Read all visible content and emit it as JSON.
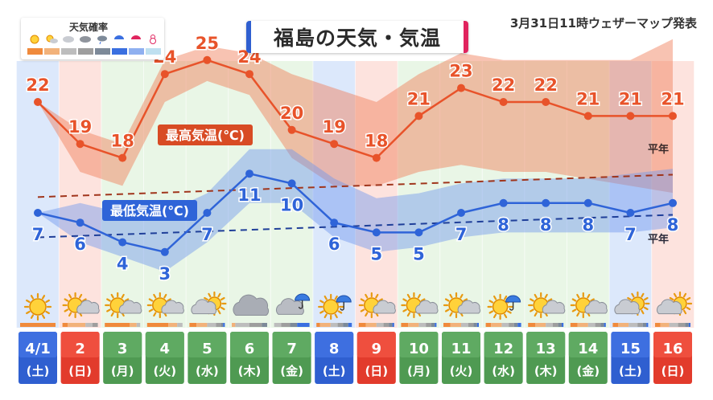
{
  "header": {
    "title": "福島の天気・気温",
    "issued": "3月31日11時ウェザーマップ発表"
  },
  "legend": {
    "title": "天気確率",
    "icons": [
      "sun-icon",
      "sun-cloud-icon",
      "cloud-icon",
      "cloud-icon",
      "cloud-rain-icon",
      "umbrella-icon",
      "umbrella-icon",
      "snowman-icon"
    ],
    "colors": [
      "#f08a3c",
      "#f2b27a",
      "#bdbdbd",
      "#9e9e9e",
      "#7d8a99",
      "#3a6fe0",
      "#8fb0f0",
      "#bfe0f0"
    ]
  },
  "chart_data": {
    "type": "line",
    "categories": [
      "4/1",
      "2",
      "3",
      "4",
      "5",
      "6",
      "7",
      "8",
      "9",
      "10",
      "11",
      "12",
      "13",
      "14",
      "15",
      "16"
    ],
    "weekdays": [
      "(土)",
      "(日)",
      "(月)",
      "(火)",
      "(水)",
      "(木)",
      "(金)",
      "(土)",
      "(日)",
      "(月)",
      "(火)",
      "(水)",
      "(木)",
      "(金)",
      "(土)",
      "(日)"
    ],
    "day_types": [
      "sat",
      "sun",
      "weekday",
      "weekday",
      "weekday",
      "weekday",
      "weekday",
      "sat",
      "sun",
      "weekday",
      "weekday",
      "weekday",
      "weekday",
      "weekday",
      "sat",
      "sun"
    ],
    "series": [
      {
        "name": "最高気温(℃)",
        "values": [
          22,
          19,
          18,
          24,
          25,
          24,
          20,
          19,
          18,
          21,
          23,
          22,
          22,
          21,
          21,
          21
        ],
        "range_high": [
          22,
          20,
          19,
          25,
          26,
          25.5,
          24,
          23,
          22,
          24,
          25.5,
          25,
          25,
          25,
          25,
          26.5
        ],
        "range_low": [
          22,
          17,
          16,
          22,
          23.5,
          22.5,
          18,
          16,
          16,
          17,
          17.5,
          17,
          17,
          16.5,
          16,
          15.5
        ],
        "color": "#e8532a",
        "normal_start": 15.2,
        "normal_end": 16.8,
        "normal_label": "平年"
      },
      {
        "name": "最低気温(℃)",
        "values": [
          7,
          6,
          4,
          3,
          7,
          11,
          10,
          6,
          5,
          5,
          7,
          8,
          8,
          8,
          7,
          8
        ],
        "range_high": [
          7,
          8,
          7,
          7,
          9,
          13.5,
          13.5,
          10.5,
          8.5,
          9,
          10,
          10.5,
          10.5,
          10.5,
          11,
          11.5
        ],
        "range_low": [
          7,
          4,
          2.5,
          1,
          4,
          8,
          8,
          4.5,
          3,
          3.5,
          4.5,
          5,
          5,
          5,
          5,
          5.5
        ],
        "color": "#2f64d8",
        "normal_start": 4.5,
        "normal_end": 6.8,
        "normal_label": "平年"
      }
    ],
    "weather": [
      {
        "icon": "sun-icon",
        "prob": [
          1,
          0,
          0,
          0,
          0,
          0,
          0,
          0
        ]
      },
      {
        "icon": "sun-cloud-icon",
        "prob": [
          0.15,
          0.5,
          0.2,
          0.15,
          0,
          0,
          0,
          0
        ]
      },
      {
        "icon": "sun-cloud-icon",
        "prob": [
          0.7,
          0.2,
          0.1,
          0,
          0,
          0,
          0,
          0
        ]
      },
      {
        "icon": "sun-cloud-icon",
        "prob": [
          0.6,
          0.25,
          0.15,
          0,
          0,
          0,
          0,
          0
        ]
      },
      {
        "icon": "cloud-sun-icon",
        "prob": [
          0.2,
          0.3,
          0.25,
          0.15,
          0.05,
          0.05,
          0,
          0
        ]
      },
      {
        "icon": "cloud-icon",
        "prob": [
          0,
          0.1,
          0.4,
          0.35,
          0.15,
          0,
          0,
          0
        ]
      },
      {
        "icon": "cloud-rain-icon",
        "prob": [
          0,
          0,
          0.2,
          0.25,
          0.2,
          0.35,
          0,
          0
        ]
      },
      {
        "icon": "sun-rain-icon",
        "prob": [
          0.1,
          0.3,
          0.2,
          0.15,
          0.15,
          0.1,
          0,
          0
        ]
      },
      {
        "icon": "sun-cloud-icon",
        "prob": [
          0.2,
          0.3,
          0.2,
          0.15,
          0.1,
          0.05,
          0,
          0
        ]
      },
      {
        "icon": "sun-cloud-icon",
        "prob": [
          0.2,
          0.3,
          0.2,
          0.15,
          0.1,
          0.05,
          0,
          0
        ]
      },
      {
        "icon": "sun-cloud-icon",
        "prob": [
          0.2,
          0.3,
          0.2,
          0.15,
          0.1,
          0.05,
          0,
          0
        ]
      },
      {
        "icon": "sun-rain-icon",
        "prob": [
          0.15,
          0.3,
          0.2,
          0.15,
          0.1,
          0.1,
          0,
          0
        ]
      },
      {
        "icon": "sun-cloud-icon",
        "prob": [
          0.2,
          0.3,
          0.2,
          0.15,
          0.1,
          0.05,
          0,
          0
        ]
      },
      {
        "icon": "sun-cloud-icon",
        "prob": [
          0.2,
          0.3,
          0.2,
          0.15,
          0.1,
          0.05,
          0,
          0
        ]
      },
      {
        "icon": "cloud-sun-icon",
        "prob": [
          0.15,
          0.3,
          0.25,
          0.15,
          0.1,
          0.05,
          0,
          0
        ]
      },
      {
        "icon": "cloud-sun-icon",
        "prob": [
          0.15,
          0.25,
          0.25,
          0.2,
          0.1,
          0.05,
          0,
          0
        ]
      }
    ]
  }
}
